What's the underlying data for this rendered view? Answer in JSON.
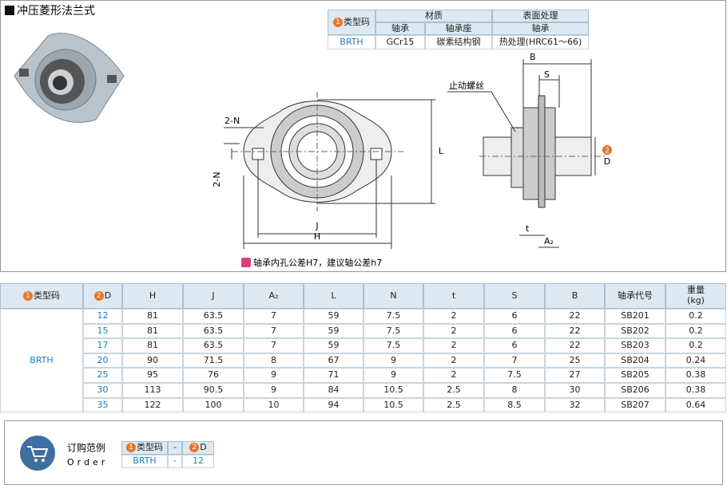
{
  "header": {
    "title": "冲压菱形法兰式"
  },
  "material_table": {
    "type_code": {
      "badge": "1",
      "label": "类型码"
    },
    "material": "材质",
    "surface": "表面处理",
    "subheaders": [
      "轴承",
      "轴承座",
      "轴承"
    ],
    "row": [
      "BRTH",
      "GCr15",
      "碳素结构钢",
      "热处理(HRC61～66)"
    ]
  },
  "drawing": {
    "set_screw": "止动螺丝",
    "n_top": "2-N",
    "n_side": "2-N",
    "j": "J",
    "h": "H",
    "l": "L",
    "b": "B",
    "s": "S",
    "d_badge": "2",
    "d": "D",
    "t": "t",
    "a": "A₂"
  },
  "note": "轴承内孔公差H7，建议轴公差h7",
  "spec_table": {
    "headers": [
      {
        "badge": "1",
        "label": "类型码"
      },
      {
        "badge": "2",
        "label": "D"
      },
      {
        "label": "H"
      },
      {
        "label": "J"
      },
      {
        "label": "A₂"
      },
      {
        "label": "L"
      },
      {
        "label": "N"
      },
      {
        "label": "t"
      },
      {
        "label": "S"
      },
      {
        "label": "B"
      },
      {
        "label": "轴承代号"
      },
      {
        "label": "重量",
        "unit": "(kg)"
      }
    ],
    "type_code": "BRTH",
    "rows": [
      [
        12,
        81,
        63.5,
        7,
        59,
        7.5,
        2,
        6,
        22,
        "SB201",
        0.2
      ],
      [
        15,
        81,
        63.5,
        7,
        59,
        7.5,
        2,
        6,
        22,
        "SB202",
        0.2
      ],
      [
        17,
        81,
        63.5,
        7,
        59,
        7.5,
        2,
        6,
        22,
        "SB203",
        0.2
      ],
      [
        20,
        90,
        71.5,
        8,
        67,
        9,
        2,
        7,
        25,
        "SB204",
        0.24
      ],
      [
        25,
        95,
        76,
        9,
        71,
        9,
        2,
        7.5,
        27,
        "SB205",
        0.38
      ],
      [
        30,
        113,
        90.5,
        9,
        84,
        10.5,
        2.5,
        8,
        30,
        "SB206",
        0.38
      ],
      [
        35,
        122,
        100,
        10,
        94,
        10.5,
        2.5,
        8.5,
        32,
        "SB207",
        0.64
      ]
    ]
  },
  "order": {
    "title": "订购范例",
    "subtitle": "Order",
    "headers": [
      {
        "badge": "1",
        "label": "类型码"
      },
      {
        "label": "-"
      },
      {
        "badge": "2",
        "label": "D"
      }
    ],
    "row": [
      "BRTH",
      "-",
      12
    ]
  }
}
